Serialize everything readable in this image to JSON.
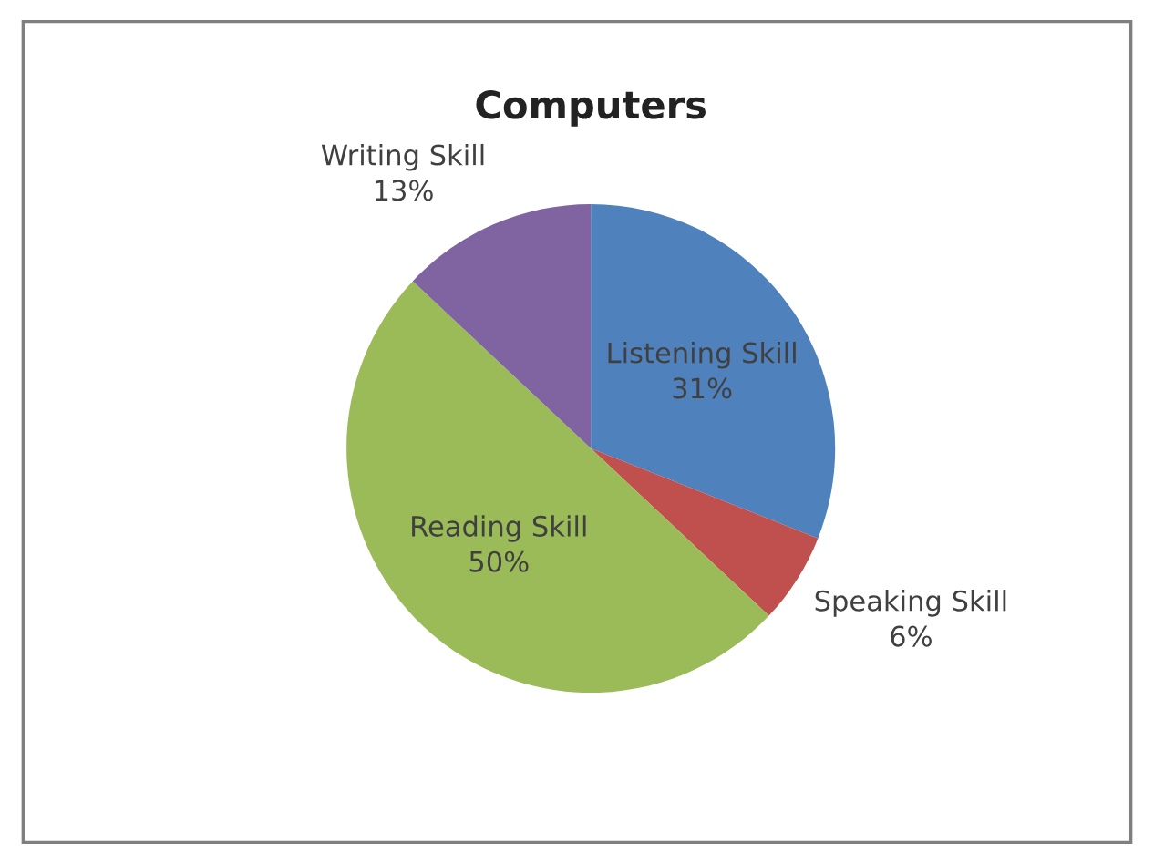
{
  "chart_data": {
    "type": "pie",
    "title": "Computers",
    "categories": [
      "Listening Skill",
      "Speaking Skill",
      "Reading Skill",
      "Writing Skill"
    ],
    "values": [
      31,
      6,
      50,
      13
    ],
    "value_labels": [
      "31%",
      "6%",
      "50%",
      "13%"
    ],
    "colors": [
      "#4f81bd",
      "#c0504d",
      "#9bbb59",
      "#8064a2"
    ]
  }
}
